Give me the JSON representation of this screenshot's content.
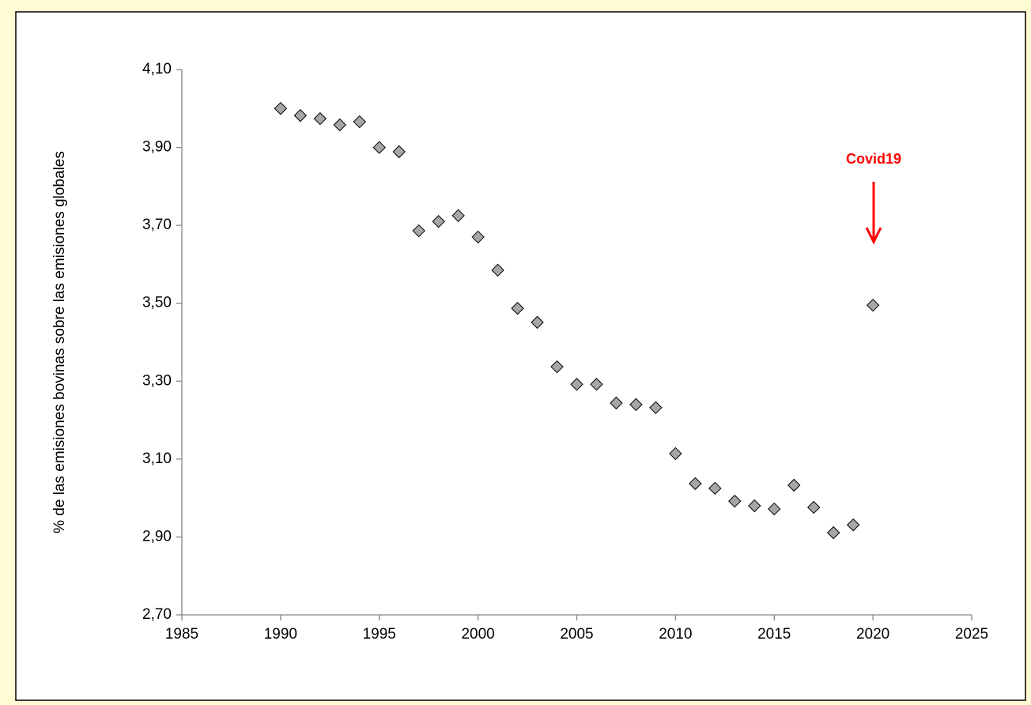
{
  "chart_data": {
    "type": "scatter",
    "y_label": "% de las emisiones bovinas sobre las emisiones globales",
    "annotation": "Covid19",
    "color": "#a6a6a6",
    "x": [
      1990,
      1991,
      1992,
      1993,
      1994,
      1995,
      1996,
      1997,
      1998,
      1999,
      2000,
      2001,
      2002,
      2003,
      2004,
      2005,
      2006,
      2007,
      2008,
      2009,
      2010,
      2011,
      2012,
      2013,
      2014,
      2015,
      2016,
      2017,
      2018,
      2019,
      2020
    ],
    "values": [
      4.0,
      3.982,
      3.974,
      3.958,
      3.966,
      3.9,
      3.889,
      3.686,
      3.71,
      3.725,
      3.67,
      3.585,
      3.487,
      3.451,
      3.337,
      3.292,
      3.292,
      3.244,
      3.24,
      3.232,
      3.114,
      3.037,
      3.025,
      2.992,
      2.98,
      2.972,
      3.033,
      2.976,
      2.911,
      2.931,
      3.495
    ],
    "xlim": [
      1985,
      2025
    ],
    "xticks": [
      1985,
      1990,
      1995,
      2000,
      2005,
      2010,
      2015,
      2020,
      2025
    ],
    "ylim": [
      2.7,
      4.1
    ],
    "yticks": [
      {
        "value": 2.7,
        "label": "2,70"
      },
      {
        "value": 2.9,
        "label": "2,90"
      },
      {
        "value": 3.1,
        "label": "3,10"
      },
      {
        "value": 3.3,
        "label": "3,30"
      },
      {
        "value": 3.5,
        "label": "3,50"
      },
      {
        "value": 3.7,
        "label": "3,70"
      },
      {
        "value": 3.9,
        "label": "3,90"
      },
      {
        "value": 4.1,
        "label": "4,10"
      }
    ]
  }
}
